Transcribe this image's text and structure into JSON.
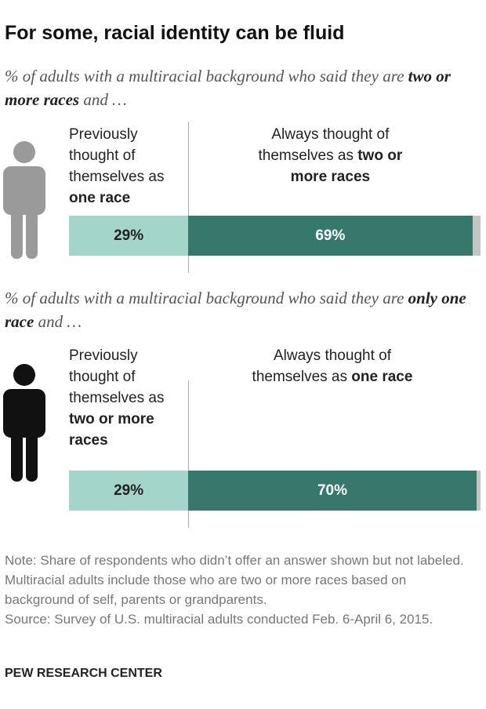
{
  "title": "For some, racial identity can be fluid",
  "chart_data": [
    {
      "type": "bar",
      "subtitle": [
        {
          "text": "% of adults with a multiracial background who said they are "
        },
        {
          "text": "two or more races",
          "bold": true
        },
        {
          "text": " and …"
        }
      ],
      "xlim": [
        0,
        100
      ],
      "series": [
        {
          "label": [
            {
              "text": "Previously thought of themselves as "
            },
            {
              "text": "one race",
              "bold": true
            }
          ],
          "color": "#a3d5ca",
          "values": [
            29
          ],
          "value_labels": [
            "29%"
          ]
        },
        {
          "label": [
            {
              "text": "Always thought of themselves as "
            },
            {
              "text": "two or more races",
              "bold": true
            }
          ],
          "color": "#36786a",
          "values": [
            69
          ],
          "value_labels": [
            "69%"
          ]
        },
        {
          "color": "#c4c4c4",
          "values": [
            2
          ]
        }
      ]
    },
    {
      "type": "bar",
      "subtitle": [
        {
          "text": "% of adults with a multiracial background who said they are "
        },
        {
          "text": "only one race",
          "bold": true
        },
        {
          "text": " and …"
        }
      ],
      "xlim": [
        0,
        100
      ],
      "series": [
        {
          "label": [
            {
              "text": "Previously thought of themselves as "
            },
            {
              "text": "two or more races",
              "bold": true
            }
          ],
          "color": "#a3d5ca",
          "values": [
            29
          ],
          "value_labels": [
            "29%"
          ]
        },
        {
          "label": [
            {
              "text": "Always thought of themselves as "
            },
            {
              "text": "one race",
              "bold": true
            }
          ],
          "color": "#36786a",
          "values": [
            70
          ],
          "value_labels": [
            "70%"
          ]
        },
        {
          "color": "#c4c4c4",
          "values": [
            1
          ]
        }
      ]
    }
  ],
  "note": "Note: Share of respondents who didn’t offer an answer shown but not labeled. Multiracial adults include those who are two or more races based on background of self, parents or grandparents.",
  "source": "Source: Survey of U.S. multiracial adults conducted Feb. 6-April 6, 2015.",
  "credit": "PEW RESEARCH CENTER"
}
